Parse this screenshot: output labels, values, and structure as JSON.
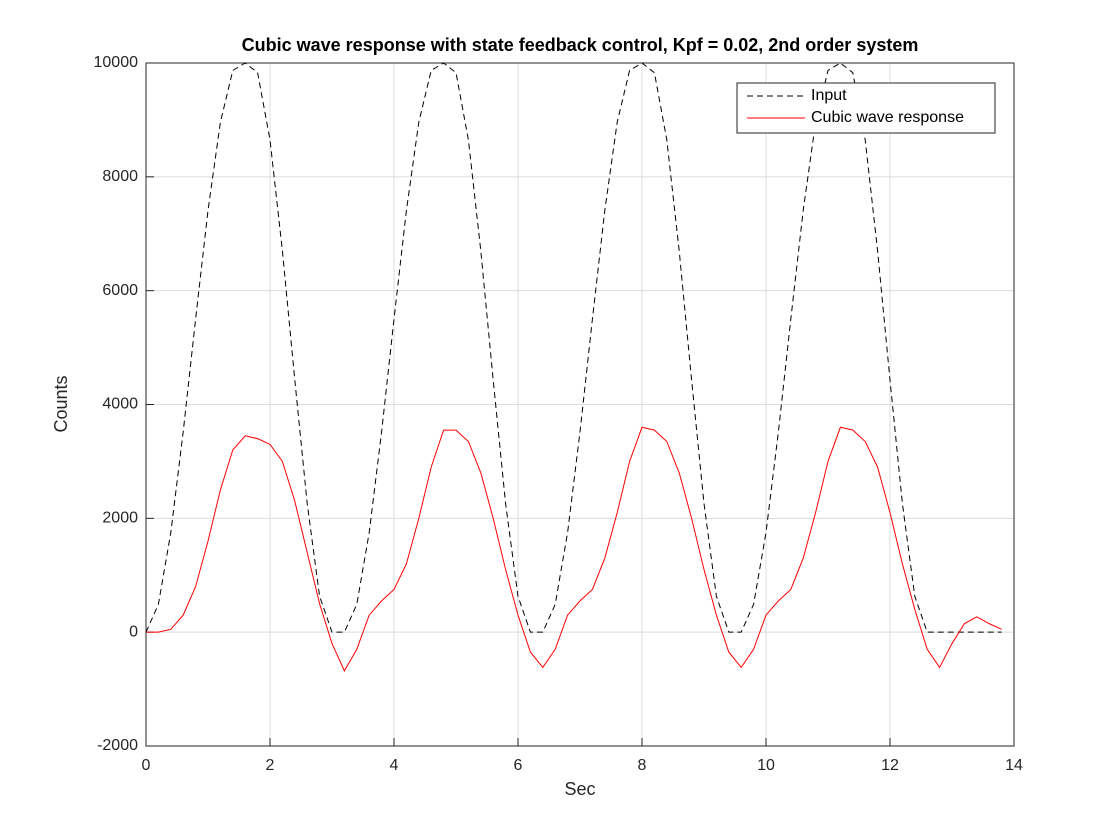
{
  "chart_data": {
    "type": "line",
    "title": "Cubic wave response with state feedback control, Kpf = 0.02, 2nd order system",
    "xlabel": "Sec",
    "ylabel": "Counts",
    "x": [
      0,
      0.2,
      0.4,
      0.6,
      0.8,
      1,
      1.2,
      1.4,
      1.6,
      1.8,
      2,
      2.2,
      2.4,
      2.6,
      2.8,
      3,
      3.2,
      3.4,
      3.6,
      3.8,
      4,
      4.2,
      4.4,
      4.6,
      4.8,
      5,
      5.2,
      5.4,
      5.6,
      5.8,
      6,
      6.2,
      6.4,
      6.6,
      6.8,
      7,
      7.2,
      7.4,
      7.6,
      7.8,
      8,
      8.2,
      8.4,
      8.6,
      8.8,
      9,
      9.2,
      9.4,
      9.6,
      9.8,
      10,
      10.2,
      10.4,
      10.6,
      10.8,
      11,
      11.2,
      11.4,
      11.6,
      11.8,
      12,
      12.2,
      12.4,
      12.6,
      12.8,
      13,
      13.2,
      13.4,
      13.6,
      13.8
    ],
    "series": [
      {
        "name": "Input",
        "color": "#000000",
        "dashed": true,
        "values": [
          0,
          490,
          1750,
          3520,
          5500,
          7410,
          8960,
          9870,
          10000,
          9830,
          8650,
          6700,
          4430,
          2260,
          630,
          0,
          0,
          490,
          1750,
          3520,
          5500,
          7410,
          8960,
          9870,
          10000,
          9830,
          8650,
          6700,
          4430,
          2260,
          630,
          0,
          0,
          490,
          1750,
          3520,
          5500,
          7410,
          8960,
          9870,
          10000,
          9830,
          8650,
          6700,
          4430,
          2260,
          630,
          0,
          0,
          490,
          1750,
          3520,
          5500,
          7410,
          8960,
          9870,
          10000,
          9830,
          8650,
          6700,
          4430,
          2260,
          630,
          0,
          0,
          0,
          0,
          0,
          0,
          0
        ]
      },
      {
        "name": "Cubic wave response",
        "color": "#ff0000",
        "dashed": false,
        "values": [
          0,
          0,
          50,
          300,
          800,
          1600,
          2500,
          3200,
          3450,
          3400,
          3300,
          3000,
          2300,
          1400,
          500,
          -200,
          -680,
          -300,
          300,
          550,
          750,
          1200,
          2000,
          2900,
          3550,
          3550,
          3350,
          2800,
          2000,
          1100,
          300,
          -350,
          -620,
          -300,
          300,
          550,
          750,
          1300,
          2100,
          3000,
          3600,
          3550,
          3350,
          2800,
          2000,
          1100,
          300,
          -350,
          -620,
          -300,
          300,
          550,
          750,
          1300,
          2100,
          3000,
          3600,
          3550,
          3350,
          2900,
          2100,
          1200,
          400,
          -300,
          -620,
          -200,
          150,
          270,
          150,
          50
        ]
      }
    ],
    "xlim": [
      0,
      14
    ],
    "xticks": [
      0,
      2,
      4,
      6,
      8,
      10,
      12,
      14
    ],
    "ylim": [
      -2000,
      10000
    ],
    "yticks": [
      -2000,
      0,
      2000,
      4000,
      6000,
      8000,
      10000
    ],
    "grid": true,
    "legend": "upper right"
  }
}
